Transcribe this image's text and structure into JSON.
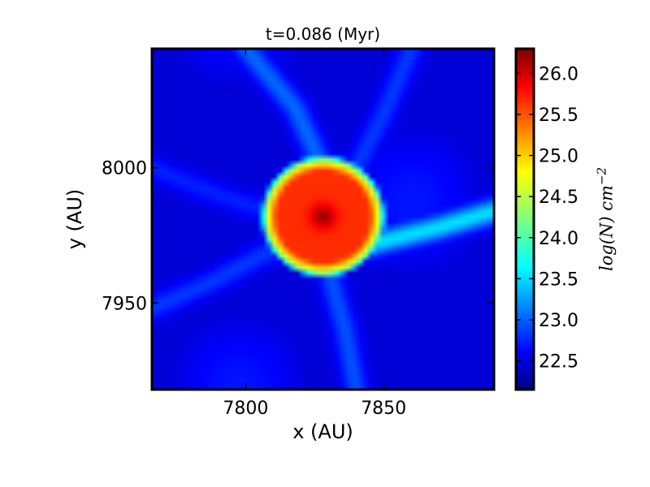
{
  "chart_data": {
    "type": "heatmap",
    "title": "t=0.086 (Myr)",
    "xlabel": "x (AU)",
    "ylabel": "y (AU)",
    "xlim": [
      7766,
      7890
    ],
    "ylim": [
      7918,
      8044
    ],
    "x_ticks": [
      7800,
      7850
    ],
    "x_tick_labels": [
      "7800",
      "7850"
    ],
    "y_ticks": [
      7950,
      8000
    ],
    "y_tick_labels": [
      "7950",
      "8000"
    ],
    "colormap": "jet",
    "colorbar": {
      "label_base": "log(N) cm",
      "label_exponent": "−2",
      "range": [
        22.15,
        26.3
      ],
      "ticks": [
        22.5,
        23.0,
        23.5,
        24.0,
        24.5,
        25.0,
        25.5,
        26.0
      ],
      "tick_labels": [
        "22.5",
        "23.0",
        "23.5",
        "24.0",
        "24.5",
        "25.0",
        "25.5",
        "26.0"
      ]
    },
    "features": {
      "core": {
        "x": 7828,
        "y": 7982,
        "peak_value": 26.2
      },
      "envelope": {
        "radius_au": 21,
        "inner_value": 25.6,
        "rim_value": 24.3
      },
      "background_value": 22.5,
      "filaments": [
        {
          "points": [
            [
              7890,
              7984
            ],
            [
              7870,
              7978
            ],
            [
              7846,
              7972
            ]
          ],
          "value": 23.6
        },
        {
          "points": [
            [
              7800,
              8044
            ],
            [
              7818,
              8022
            ],
            [
              7826,
              8004
            ]
          ],
          "value": 23.1
        },
        {
          "points": [
            [
              7766,
              7948
            ],
            [
              7788,
              7958
            ],
            [
              7810,
              7970
            ]
          ],
          "value": 22.9
        },
        {
          "points": [
            [
              7830,
              7962
            ],
            [
              7836,
              7940
            ],
            [
              7840,
              7918
            ]
          ],
          "value": 23.0
        },
        {
          "points": [
            [
              7860,
              8044
            ],
            [
              7850,
              8020
            ],
            [
              7840,
              8000
            ]
          ],
          "value": 22.9
        },
        {
          "points": [
            [
              7766,
              8000
            ],
            [
              7790,
              7990
            ],
            [
              7808,
              7984
            ]
          ],
          "value": 22.8
        }
      ]
    }
  }
}
